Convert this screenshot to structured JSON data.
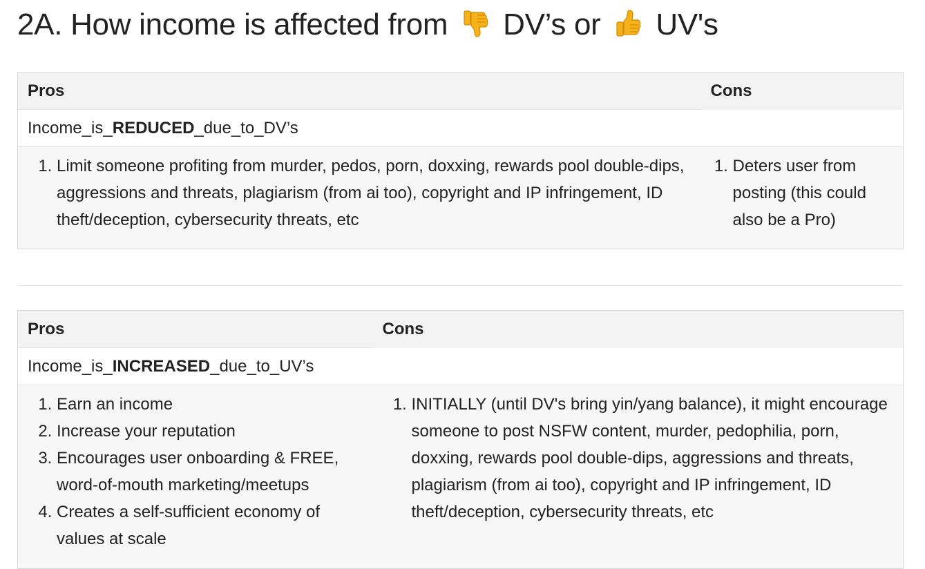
{
  "heading": {
    "prefix": "2A. How income is affected from",
    "middle": "DV’s or",
    "suffix": "UV's",
    "icons": [
      "thumbs-down-icon",
      "thumbs-up-icon"
    ],
    "emoji_color": "#f5b21a"
  },
  "table1": {
    "header_pros": "Pros",
    "header_cons": "Cons",
    "subtitle_pre": "Income_is_",
    "subtitle_bold": "REDUCED",
    "subtitle_post": "_due_to_DV’s",
    "pros": [
      "Limit someone profiting from murder, pedos, porn, doxxing, rewards pool double-dips, aggressions and threats, plagiarism (from ai too), copyright and IP infringement, ID theft/deception, cybersecurity threats, etc"
    ],
    "cons": [
      "Deters user from posting (this could also be a Pro)"
    ]
  },
  "table2": {
    "header_pros": "Pros",
    "header_cons": "Cons",
    "subtitle_pre": "Income_is_",
    "subtitle_bold": "INCREASED",
    "subtitle_post": "_due_to_UV’s",
    "pros": [
      "Earn an income",
      "Increase your reputation",
      "Encourages user onboarding & FREE, word-of-mouth marketing/meetups",
      "Creates a self-sufficient economy of values at scale"
    ],
    "cons": [
      "INITIALLY (until DV's bring yin/yang balance), it might encourage someone to post NSFW content, murder, pedophilia, porn, doxxing, rewards pool double-dips, aggressions and threats, plagiarism (from ai too), copyright and IP infringement, ID theft/deception, cybersecurity threats, etc"
    ]
  }
}
